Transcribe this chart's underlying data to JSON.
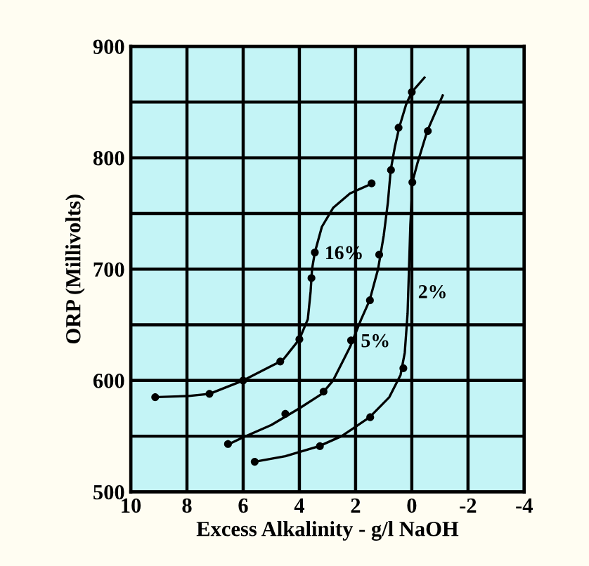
{
  "chart_data": {
    "type": "line",
    "xlabel": "Excess Alkalinity - g/l NaOH",
    "ylabel": "ORP (Millivolts)",
    "xlim": [
      10,
      -4
    ],
    "xticks": [
      10,
      8,
      6,
      4,
      2,
      0,
      {
        "value": -2,
        "label": "-2"
      },
      {
        "value": -4,
        "label": "-4"
      }
    ],
    "ylim": [
      500,
      900
    ],
    "yticks": [
      500,
      {
        "value": 550,
        "label": null
      },
      600,
      {
        "value": 650,
        "label": null
      },
      700,
      {
        "value": 750,
        "label": null
      },
      800,
      {
        "value": 850,
        "label": null
      },
      900
    ],
    "grid": true,
    "line_style": "solid",
    "series": [
      {
        "color": "#000000",
        "marker": "none",
        "x": [
          9.2,
          8,
          7.2,
          6,
          5,
          4.6,
          4,
          3.7,
          3.6,
          3.55,
          3.45,
          3.2,
          2.8,
          2.2,
          1.4
        ],
        "values": [
          585,
          586,
          588,
          600,
          613,
          618,
          637,
          655,
          680,
          700,
          715,
          738,
          755,
          768,
          777
        ]
      },
      {
        "type": "scatter",
        "color": "#000000",
        "marker": "circle",
        "x": [
          9.13,
          7.2,
          6,
          4.68,
          4,
          3.57,
          3.45,
          1.43
        ],
        "values": [
          585,
          588,
          600,
          617,
          637,
          692,
          715,
          777
        ]
      },
      {
        "color": "#000000",
        "marker": "none",
        "x": [
          6.5,
          6,
          5,
          4,
          3.2,
          2.8,
          2.2,
          1.8,
          1.5,
          1.2,
          1.0,
          0.85,
          0.75,
          0.6,
          0.45,
          0.2,
          0.0,
          -0.45
        ],
        "values": [
          543,
          549,
          560,
          575,
          588,
          600,
          630,
          655,
          672,
          700,
          730,
          760,
          789,
          810,
          827,
          848,
          859,
          872
        ]
      },
      {
        "type": "scatter",
        "color": "#000000",
        "marker": "circle",
        "x": [
          6.54,
          4.5,
          3.14,
          2.16,
          1.49,
          1.16,
          0.74,
          0.47,
          0.0
        ],
        "values": [
          543,
          570,
          590,
          636,
          672,
          713,
          789,
          827,
          859
        ]
      },
      {
        "color": "#000000",
        "marker": "none",
        "x": [
          5.6,
          4.5,
          3.3,
          2.5,
          1.5,
          0.8,
          0.4,
          0.25,
          0.15,
          0.1,
          0.05,
          0.0,
          -0.02,
          -0.2,
          -0.55,
          -1.1
        ],
        "values": [
          527,
          532,
          541,
          550,
          567,
          585,
          605,
          625,
          660,
          700,
          740,
          765,
          778,
          795,
          824,
          856
        ]
      },
      {
        "type": "scatter",
        "color": "#000000",
        "marker": "circle",
        "x": [
          5.59,
          3.27,
          1.48,
          0.3,
          -0.02,
          -0.57
        ],
        "values": [
          527,
          541,
          567,
          611,
          778,
          824
        ]
      }
    ],
    "annotations": [
      {
        "text": "16%",
        "x": 3.45,
        "y": 715
      },
      {
        "text": "5%",
        "x": 2.16,
        "y": 636
      },
      {
        "text": "2%",
        "x": 0.125,
        "y": 680
      }
    ]
  }
}
